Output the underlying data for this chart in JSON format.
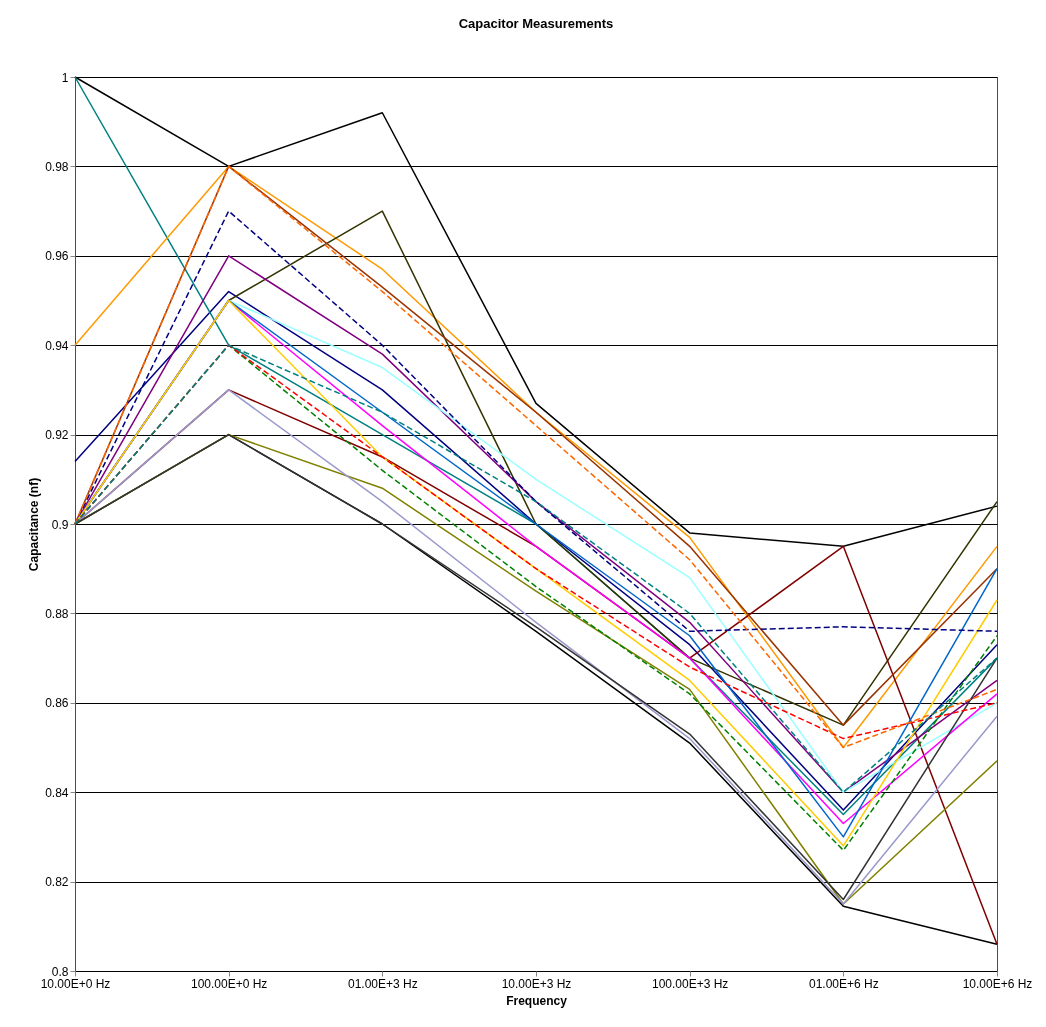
{
  "chart_data": {
    "type": "line",
    "title": "Capacitor Measurements",
    "xlabel": "Frequency",
    "ylabel": "Capacitance (nf)",
    "categories": [
      "10.00E+0 Hz",
      "100.00E+0 Hz",
      "01.00E+3 Hz",
      "10.00E+3 Hz",
      "100.00E+3 Hz",
      "01.00E+6 Hz",
      "10.00E+6 Hz"
    ],
    "ylim": [
      0.8,
      1
    ],
    "yticks": [
      0.8,
      0.82,
      0.84,
      0.86,
      0.88,
      0.9,
      0.92,
      0.94,
      0.96,
      0.98,
      1
    ],
    "grid": "y",
    "legend": false,
    "marker": "none",
    "line_style": "solid",
    "series": [
      {
        "color": "#000000",
        "values": [
          1,
          0.98,
          0.992,
          0.927,
          0.898,
          0.895,
          0.904
        ]
      },
      {
        "color": "#000000",
        "values": [
          0.9,
          0.92,
          0.9,
          0.876,
          0.851,
          0.8145,
          0.806
        ]
      },
      {
        "color": "#000080",
        "values": [
          0.914,
          0.952,
          0.93,
          0.9,
          0.873,
          0.836,
          0.873
        ]
      },
      {
        "color": "#008080",
        "values": [
          1,
          0.94,
          0.92,
          0.9,
          0.87,
          0.835,
          0.87
        ]
      },
      {
        "color": "#ff9900",
        "values": [
          0.94,
          0.98,
          0.957,
          0.925,
          0.897,
          0.85,
          0.895
        ]
      },
      {
        "color": "#333300",
        "values": [
          0.9,
          0.95,
          0.97,
          0.9,
          0.87,
          0.855,
          0.905
        ]
      },
      {
        "color": "#800000",
        "values": [
          0.9,
          0.93,
          0.915,
          0.895,
          0.87,
          0.895,
          0.806
        ]
      },
      {
        "color": "#993300",
        "values": [
          0.9,
          0.98,
          0.953,
          0.925,
          0.895,
          0.855,
          0.89
        ]
      },
      {
        "color": "#000080",
        "line_style": "dashed",
        "values": [
          0.9,
          0.97,
          0.94,
          0.905,
          0.876,
          0.877,
          0.876
        ]
      },
      {
        "color": "#800080",
        "values": [
          0.9,
          0.96,
          0.938,
          0.905,
          0.878,
          0.84,
          0.865
        ]
      },
      {
        "color": "#008000",
        "line_style": "dashed",
        "values": [
          0.9,
          0.94,
          0.912,
          0.886,
          0.862,
          0.827,
          0.875
        ]
      },
      {
        "color": "#808000",
        "values": [
          0.9,
          0.92,
          0.908,
          0.885,
          0.863,
          0.815,
          0.847
        ]
      },
      {
        "color": "#9999cc",
        "values": [
          0.9,
          0.93,
          0.905,
          0.878,
          0.852,
          0.815,
          0.857
        ]
      },
      {
        "color": "#99ffff",
        "values": [
          0.9,
          0.95,
          0.935,
          0.91,
          0.888,
          0.84,
          0.86
        ]
      },
      {
        "color": "#ff00ff",
        "values": [
          0.9,
          0.95,
          0.922,
          0.895,
          0.87,
          0.833,
          0.862
        ]
      },
      {
        "color": "#0066cc",
        "values": [
          0.9,
          0.95,
          0.925,
          0.9,
          0.875,
          0.83,
          0.89
        ]
      },
      {
        "color": "#ffcc00",
        "values": [
          0.9,
          0.95,
          0.915,
          0.89,
          0.865,
          0.828,
          0.883
        ]
      },
      {
        "color": "#ff0000",
        "line_style": "dashed",
        "values": [
          0.9,
          0.94,
          0.915,
          0.89,
          0.868,
          0.852,
          0.86
        ]
      },
      {
        "color": "#ff6600",
        "line_style": "dashed",
        "values": [
          0.9,
          0.98,
          0.952,
          0.922,
          0.892,
          0.85,
          0.863
        ]
      },
      {
        "color": "#008080",
        "line_style": "dashed",
        "values": [
          0.9,
          0.94,
          0.925,
          0.905,
          0.88,
          0.84,
          0.87
        ]
      },
      {
        "color": "#333333",
        "values": [
          0.9,
          0.92,
          0.9,
          0.877,
          0.853,
          0.816,
          0.87
        ]
      }
    ]
  }
}
